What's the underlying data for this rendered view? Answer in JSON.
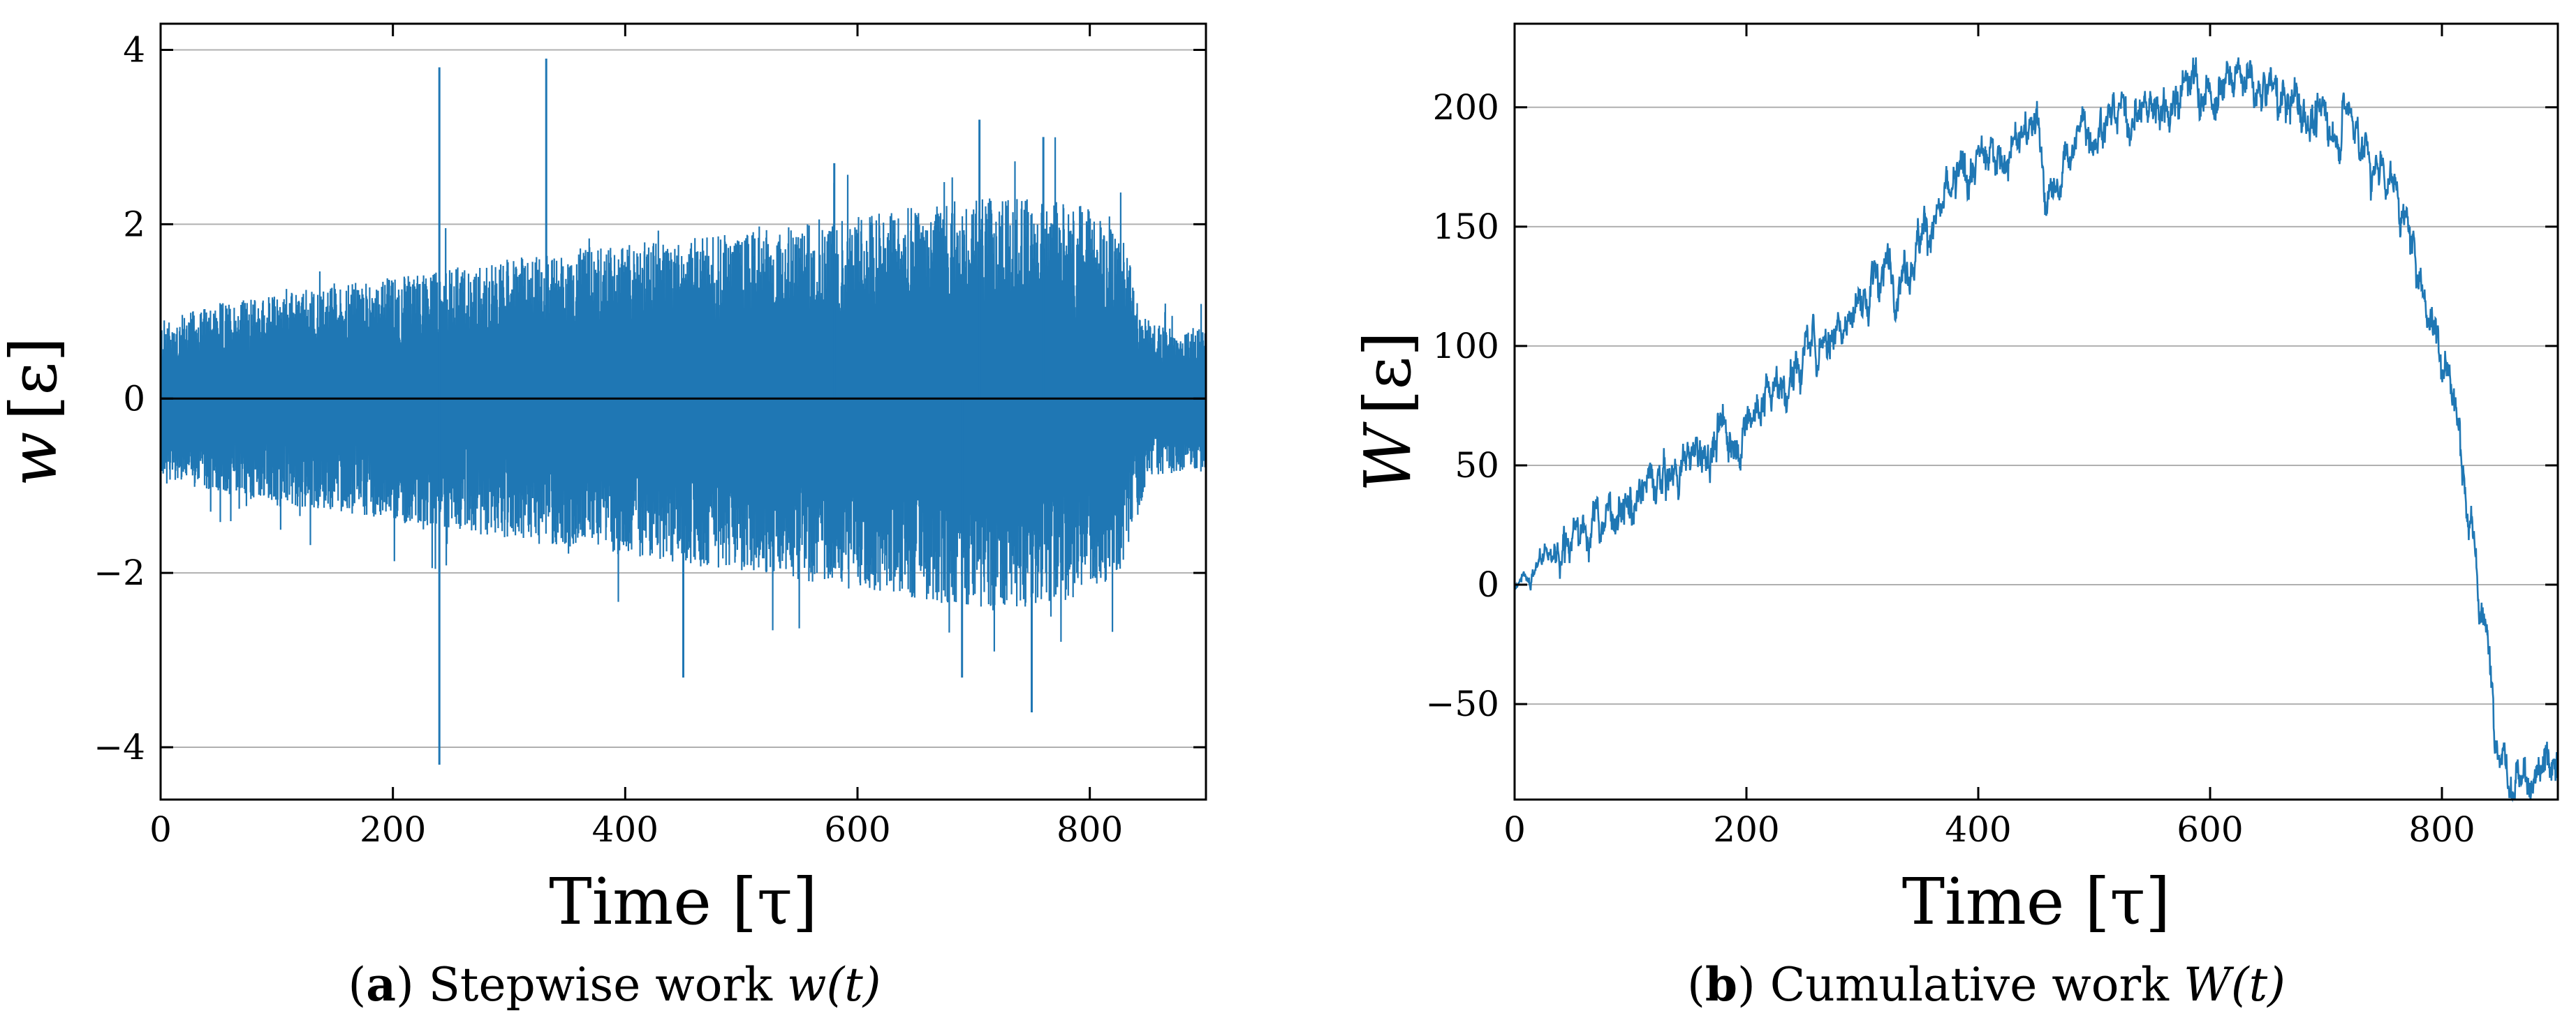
{
  "colors": {
    "series": "#1f77b4",
    "zero_line": "#000000",
    "grid": "#b0b0b0"
  },
  "chart_data": [
    {
      "type": "line",
      "panel_letter": "a",
      "caption_text": "Stepwise work",
      "caption_symbol": "w(t)",
      "xlabel": "Time [τ]",
      "ylabel_symbol": "w",
      "ylabel_unit": "[ε]",
      "xlim": [
        0,
        900
      ],
      "ylim": [
        -4.6,
        4.3
      ],
      "xticks": [
        0,
        200,
        400,
        600,
        800
      ],
      "xtick_labels": [
        "0",
        "200",
        "400",
        "600",
        "800"
      ],
      "yticks": [
        -4,
        -2,
        0,
        2,
        4
      ],
      "ytick_labels": [
        "−4",
        "−2",
        "0",
        "2",
        "4"
      ],
      "grid": "horizontal",
      "zero_line": true,
      "series": [
        {
          "name": "w(t)",
          "description": "dense zero-mean fluctuations; envelope widens from about ±0.8 at t=0 to about ±2.5 near t=650-800, narrowing after t≈830",
          "envelope_time": [
            0,
            50,
            100,
            200,
            300,
            400,
            500,
            600,
            650,
            700,
            750,
            800,
            830,
            850,
            900
          ],
          "envelope_upper": [
            0.9,
            1.1,
            1.2,
            1.4,
            1.6,
            1.8,
            1.9,
            2.1,
            2.2,
            2.3,
            2.3,
            2.2,
            1.8,
            0.9,
            0.8
          ],
          "envelope_lower": [
            -0.9,
            -1.1,
            -1.2,
            -1.4,
            -1.6,
            -1.8,
            -2.0,
            -2.2,
            -2.3,
            -2.4,
            -2.4,
            -2.3,
            -1.9,
            -0.9,
            -0.8
          ],
          "spikes": [
            {
              "t": 240,
              "w": 3.8
            },
            {
              "t": 240,
              "w": -4.2
            },
            {
              "t": 332,
              "w": 3.9
            },
            {
              "t": 450,
              "w": -3.2
            },
            {
              "t": 580,
              "w": 2.7
            },
            {
              "t": 705,
              "w": 3.2
            },
            {
              "t": 750,
              "w": -3.6
            },
            {
              "t": 760,
              "w": 3.0
            },
            {
              "t": 690,
              "w": -3.2
            }
          ]
        }
      ]
    },
    {
      "type": "line",
      "panel_letter": "b",
      "caption_text": "Cumulative work",
      "caption_symbol": "W(t)",
      "xlabel": "Time [τ]",
      "ylabel_symbol": "W",
      "ylabel_unit": "[ε]",
      "xlim": [
        0,
        900
      ],
      "ylim": [
        -90,
        235
      ],
      "xticks": [
        0,
        200,
        400,
        600,
        800
      ],
      "xtick_labels": [
        "0",
        "200",
        "400",
        "600",
        "800"
      ],
      "yticks": [
        -50,
        0,
        50,
        100,
        150,
        200
      ],
      "ytick_labels": [
        "−50",
        "0",
        "50",
        "100",
        "150",
        "200"
      ],
      "grid": "horizontal",
      "series": [
        {
          "name": "W(t)",
          "x": [
            0,
            50,
            100,
            150,
            200,
            250,
            300,
            350,
            400,
            430,
            450,
            465,
            480,
            500,
            550,
            580,
            600,
            620,
            650,
            680,
            700,
            720,
            740,
            760,
            780,
            800,
            810,
            820,
            830,
            840,
            850,
            860,
            880,
            900
          ],
          "y": [
            0,
            20,
            35,
            52,
            70,
            95,
            120,
            145,
            175,
            185,
            190,
            155,
            185,
            195,
            200,
            210,
            205,
            210,
            205,
            200,
            190,
            200,
            175,
            170,
            130,
            100,
            80,
            45,
            5,
            -30,
            -60,
            -75,
            -80,
            -82
          ],
          "noise": 7
        }
      ]
    }
  ]
}
